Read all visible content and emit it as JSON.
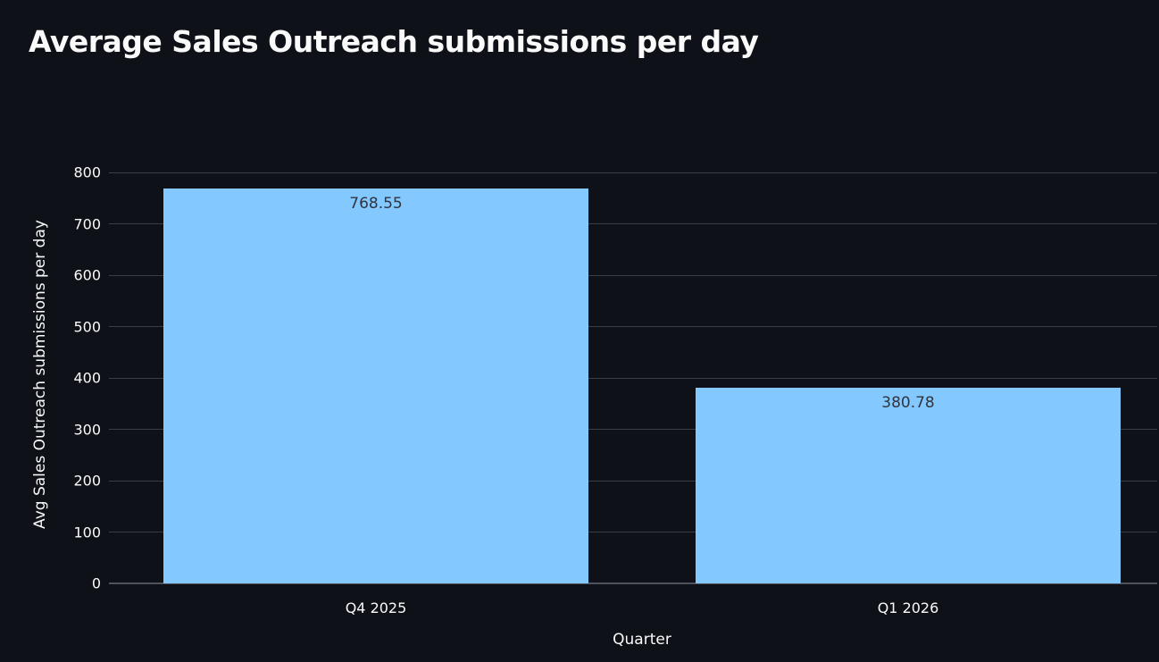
{
  "title": "Average Sales Outreach submissions per day",
  "chart_data": {
    "type": "bar",
    "title": "Average Sales Outreach submissions per day",
    "categories": [
      "Q4 2025",
      "Q1 2026"
    ],
    "values": [
      768.55,
      380.78
    ],
    "value_labels": [
      "768.55",
      "380.78"
    ],
    "xlabel": "Quarter",
    "ylabel": "Avg Sales Outreach submissions per day",
    "ylim": [
      0,
      800
    ],
    "yticks": [
      0,
      100,
      200,
      300,
      400,
      500,
      600,
      700,
      800
    ],
    "grid": "horizontal-only",
    "legend": "none",
    "colors": {
      "background": "#0E1117",
      "bar": "#83C9FF",
      "text": "#FAFAFA",
      "grid": "#3A3E46",
      "zero_line": "#4E535C",
      "value_label": "#31333F"
    }
  }
}
